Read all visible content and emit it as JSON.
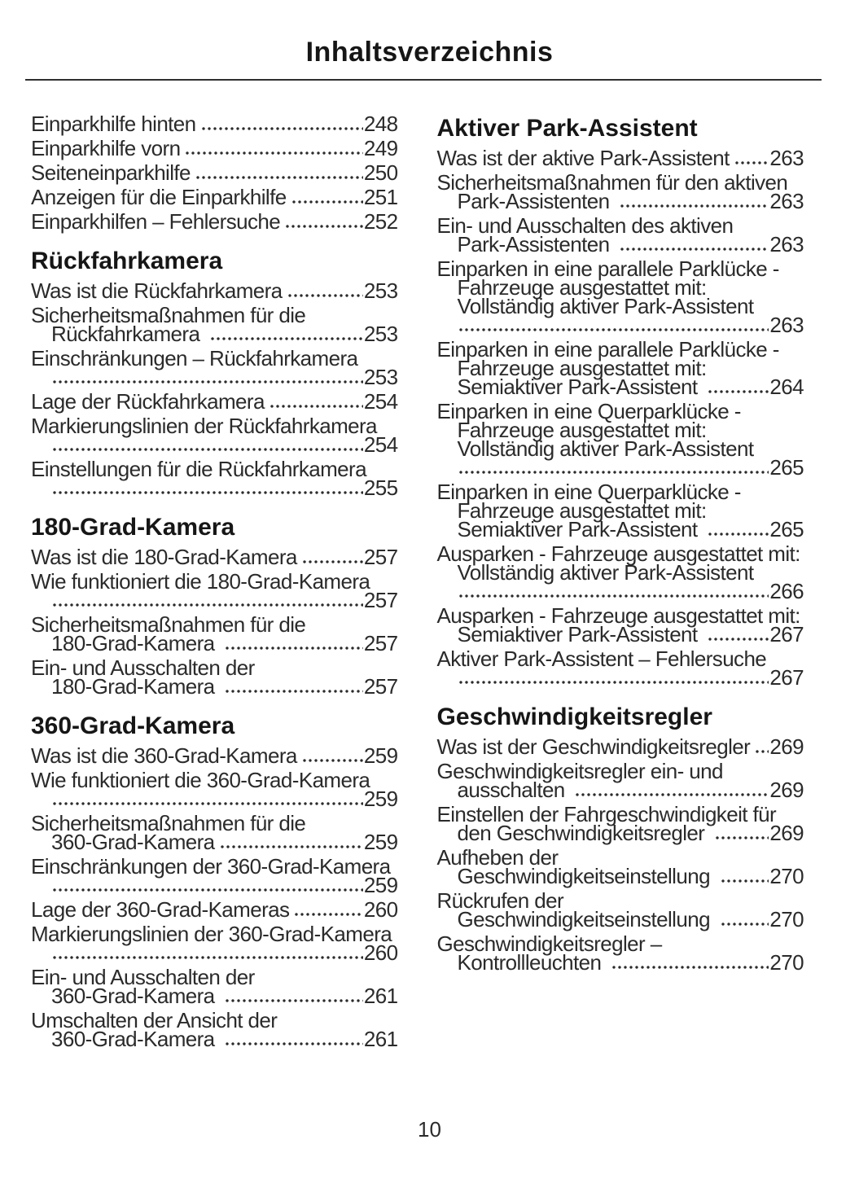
{
  "header": {
    "title": "Inhaltsverzeichnis"
  },
  "footer": {
    "page_number": "10"
  },
  "columns": [
    {
      "groups": [
        {
          "heading": null,
          "entries": [
            {
              "lines": [
                {
                  "text": "Einparkhilfe hinten",
                  "page": "248"
                }
              ]
            },
            {
              "lines": [
                {
                  "text": "Einparkhilfe vorn",
                  "page": "249"
                }
              ]
            },
            {
              "lines": [
                {
                  "text": "Seiteneinparkhilfe",
                  "page": "250"
                }
              ]
            },
            {
              "lines": [
                {
                  "text": "Anzeigen für die Einparkhilfe",
                  "page": "251"
                }
              ]
            },
            {
              "lines": [
                {
                  "text": "Einparkhilfen – Fehlersuche",
                  "page": "252"
                }
              ]
            }
          ]
        },
        {
          "heading": "Rückfahrkamera",
          "entries": [
            {
              "lines": [
                {
                  "text": "Was ist die Rückfahrkamera",
                  "page": "253"
                }
              ]
            },
            {
              "lines": [
                {
                  "text": "Sicherheitsmaßnahmen für die"
                },
                {
                  "text": "Rückfahrkamera ",
                  "page": "253"
                }
              ]
            },
            {
              "lines": [
                {
                  "text": "Einschränkungen – Rückfahrkamera"
                },
                {
                  "text": "",
                  "page": "253"
                }
              ]
            },
            {
              "lines": [
                {
                  "text": "Lage der Rückfahrkamera",
                  "page": "254"
                }
              ]
            },
            {
              "lines": [
                {
                  "text": "Markierungslinien der Rückfahrkamera"
                },
                {
                  "text": "",
                  "page": "254"
                }
              ]
            },
            {
              "lines": [
                {
                  "text": "Einstellungen für die Rückfahrkamera"
                },
                {
                  "text": "",
                  "page": "255"
                }
              ]
            }
          ]
        },
        {
          "heading": "180-Grad-Kamera",
          "entries": [
            {
              "lines": [
                {
                  "text": "Was ist die 180-Grad-Kamera",
                  "page": "257"
                }
              ]
            },
            {
              "lines": [
                {
                  "text": "Wie funktioniert die 180-Grad-Kamera"
                },
                {
                  "text": "",
                  "page": "257"
                }
              ]
            },
            {
              "lines": [
                {
                  "text": "Sicherheitsmaßnahmen für die"
                },
                {
                  "text": "180-Grad-Kamera ",
                  "page": "257"
                }
              ]
            },
            {
              "lines": [
                {
                  "text": "Ein- und Ausschalten der"
                },
                {
                  "text": "180-Grad-Kamera ",
                  "page": "257"
                }
              ]
            }
          ]
        },
        {
          "heading": "360-Grad-Kamera",
          "entries": [
            {
              "lines": [
                {
                  "text": "Was ist die 360-Grad-Kamera",
                  "page": "259"
                }
              ]
            },
            {
              "lines": [
                {
                  "text": "Wie funktioniert die 360-Grad-Kamera"
                },
                {
                  "text": "",
                  "page": "259"
                }
              ]
            },
            {
              "lines": [
                {
                  "text": "Sicherheitsmaßnahmen für die"
                },
                {
                  "text": "360-Grad-Kamera",
                  "page": "259"
                }
              ]
            },
            {
              "lines": [
                {
                  "text": "Einschränkungen der 360-Grad-Kamera"
                },
                {
                  "text": "",
                  "page": "259"
                }
              ]
            },
            {
              "lines": [
                {
                  "text": "Lage der 360-Grad-Kameras",
                  "page": "260"
                }
              ]
            },
            {
              "lines": [
                {
                  "text": "Markierungslinien der 360-Grad-Kamera"
                },
                {
                  "text": "",
                  "page": "260"
                }
              ]
            },
            {
              "lines": [
                {
                  "text": "Ein- und Ausschalten der"
                },
                {
                  "text": "360-Grad-Kamera ",
                  "page": "261"
                }
              ]
            },
            {
              "lines": [
                {
                  "text": "Umschalten der Ansicht der"
                },
                {
                  "text": "360-Grad-Kamera ",
                  "page": "261"
                }
              ]
            }
          ]
        }
      ]
    },
    {
      "groups": [
        {
          "heading": "Aktiver Park-Assistent",
          "entries": [
            {
              "lines": [
                {
                  "text": "Was ist der aktive Park-Assistent",
                  "page": "263"
                }
              ]
            },
            {
              "lines": [
                {
                  "text": "Sicherheitsmaßnahmen für den aktiven"
                },
                {
                  "text": "Park-Assistenten ",
                  "page": "263"
                }
              ]
            },
            {
              "lines": [
                {
                  "text": "Ein- und Ausschalten des aktiven"
                },
                {
                  "text": "Park-Assistenten ",
                  "page": "263"
                }
              ]
            },
            {
              "lines": [
                {
                  "text": "Einparken in eine parallele Parklücke -"
                },
                {
                  "text": "Fahrzeuge ausgestattet mit:"
                },
                {
                  "text": "Vollständig aktiver Park-Assistent"
                },
                {
                  "text": "",
                  "page": "263"
                }
              ]
            },
            {
              "lines": [
                {
                  "text": "Einparken in eine parallele Parklücke -"
                },
                {
                  "text": "Fahrzeuge ausgestattet mit:"
                },
                {
                  "text": "Semiaktiver Park-Assistent ",
                  "page": "264"
                }
              ]
            },
            {
              "lines": [
                {
                  "text": "Einparken in eine Querparklücke -"
                },
                {
                  "text": "Fahrzeuge ausgestattet mit:"
                },
                {
                  "text": "Vollständig aktiver Park-Assistent"
                },
                {
                  "text": "",
                  "page": "265"
                }
              ]
            },
            {
              "lines": [
                {
                  "text": "Einparken in eine Querparklücke -"
                },
                {
                  "text": "Fahrzeuge ausgestattet mit:"
                },
                {
                  "text": "Semiaktiver Park-Assistent ",
                  "page": "265"
                }
              ]
            },
            {
              "lines": [
                {
                  "text": "Ausparken - Fahrzeuge ausgestattet mit:"
                },
                {
                  "text": "Vollständig aktiver Park-Assistent"
                },
                {
                  "text": "",
                  "page": "266"
                }
              ]
            },
            {
              "lines": [
                {
                  "text": "Ausparken - Fahrzeuge ausgestattet mit:"
                },
                {
                  "text": "Semiaktiver Park-Assistent ",
                  "page": "267"
                }
              ]
            },
            {
              "lines": [
                {
                  "text": "Aktiver Park-Assistent – Fehlersuche"
                },
                {
                  "text": "",
                  "page": "267"
                }
              ]
            }
          ]
        },
        {
          "heading": "Geschwindigkeitsregler",
          "entries": [
            {
              "lines": [
                {
                  "text": "Was ist der Geschwindigkeitsregler",
                  "page": "269"
                }
              ]
            },
            {
              "lines": [
                {
                  "text": "Geschwindigkeitsregler ein- und"
                },
                {
                  "text": "ausschalten ",
                  "page": "269"
                }
              ]
            },
            {
              "lines": [
                {
                  "text": "Einstellen der Fahrgeschwindigkeit für"
                },
                {
                  "text": "den Geschwindigkeitsregler ",
                  "page": "269"
                }
              ]
            },
            {
              "lines": [
                {
                  "text": "Aufheben der"
                },
                {
                  "text": "Geschwindigkeitseinstellung ",
                  "page": "270"
                }
              ]
            },
            {
              "lines": [
                {
                  "text": "Rückrufen der"
                },
                {
                  "text": "Geschwindigkeitseinstellung ",
                  "page": "270"
                }
              ]
            },
            {
              "lines": [
                {
                  "text": "Geschwindigkeitsregler –"
                },
                {
                  "text": "Kontrollleuchten ",
                  "page": "270"
                }
              ]
            }
          ]
        }
      ]
    }
  ]
}
